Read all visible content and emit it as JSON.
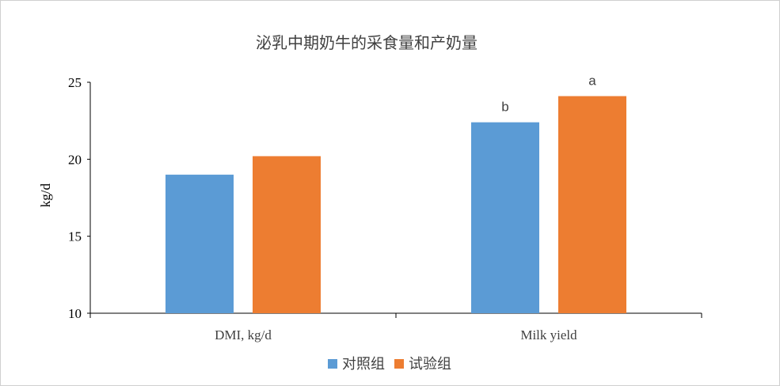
{
  "chart_data": {
    "type": "bar",
    "title": "泌乳中期奶牛的采食量和产奶量",
    "ylabel": "kg/d",
    "xlabel": "",
    "categories": [
      "DMI, kg/d",
      "Milk yield"
    ],
    "ylim": [
      10,
      25
    ],
    "yticks": [
      10,
      15,
      20,
      25
    ],
    "grid": false,
    "legend_position": "bottom",
    "series": [
      {
        "name": "对照组",
        "color": "#5B9BD5",
        "values": [
          19.0,
          22.4
        ],
        "labels": [
          "",
          "b"
        ]
      },
      {
        "name": "试验组",
        "color": "#ED7D31",
        "values": [
          20.2,
          24.1
        ],
        "labels": [
          "",
          "a"
        ]
      }
    ]
  }
}
